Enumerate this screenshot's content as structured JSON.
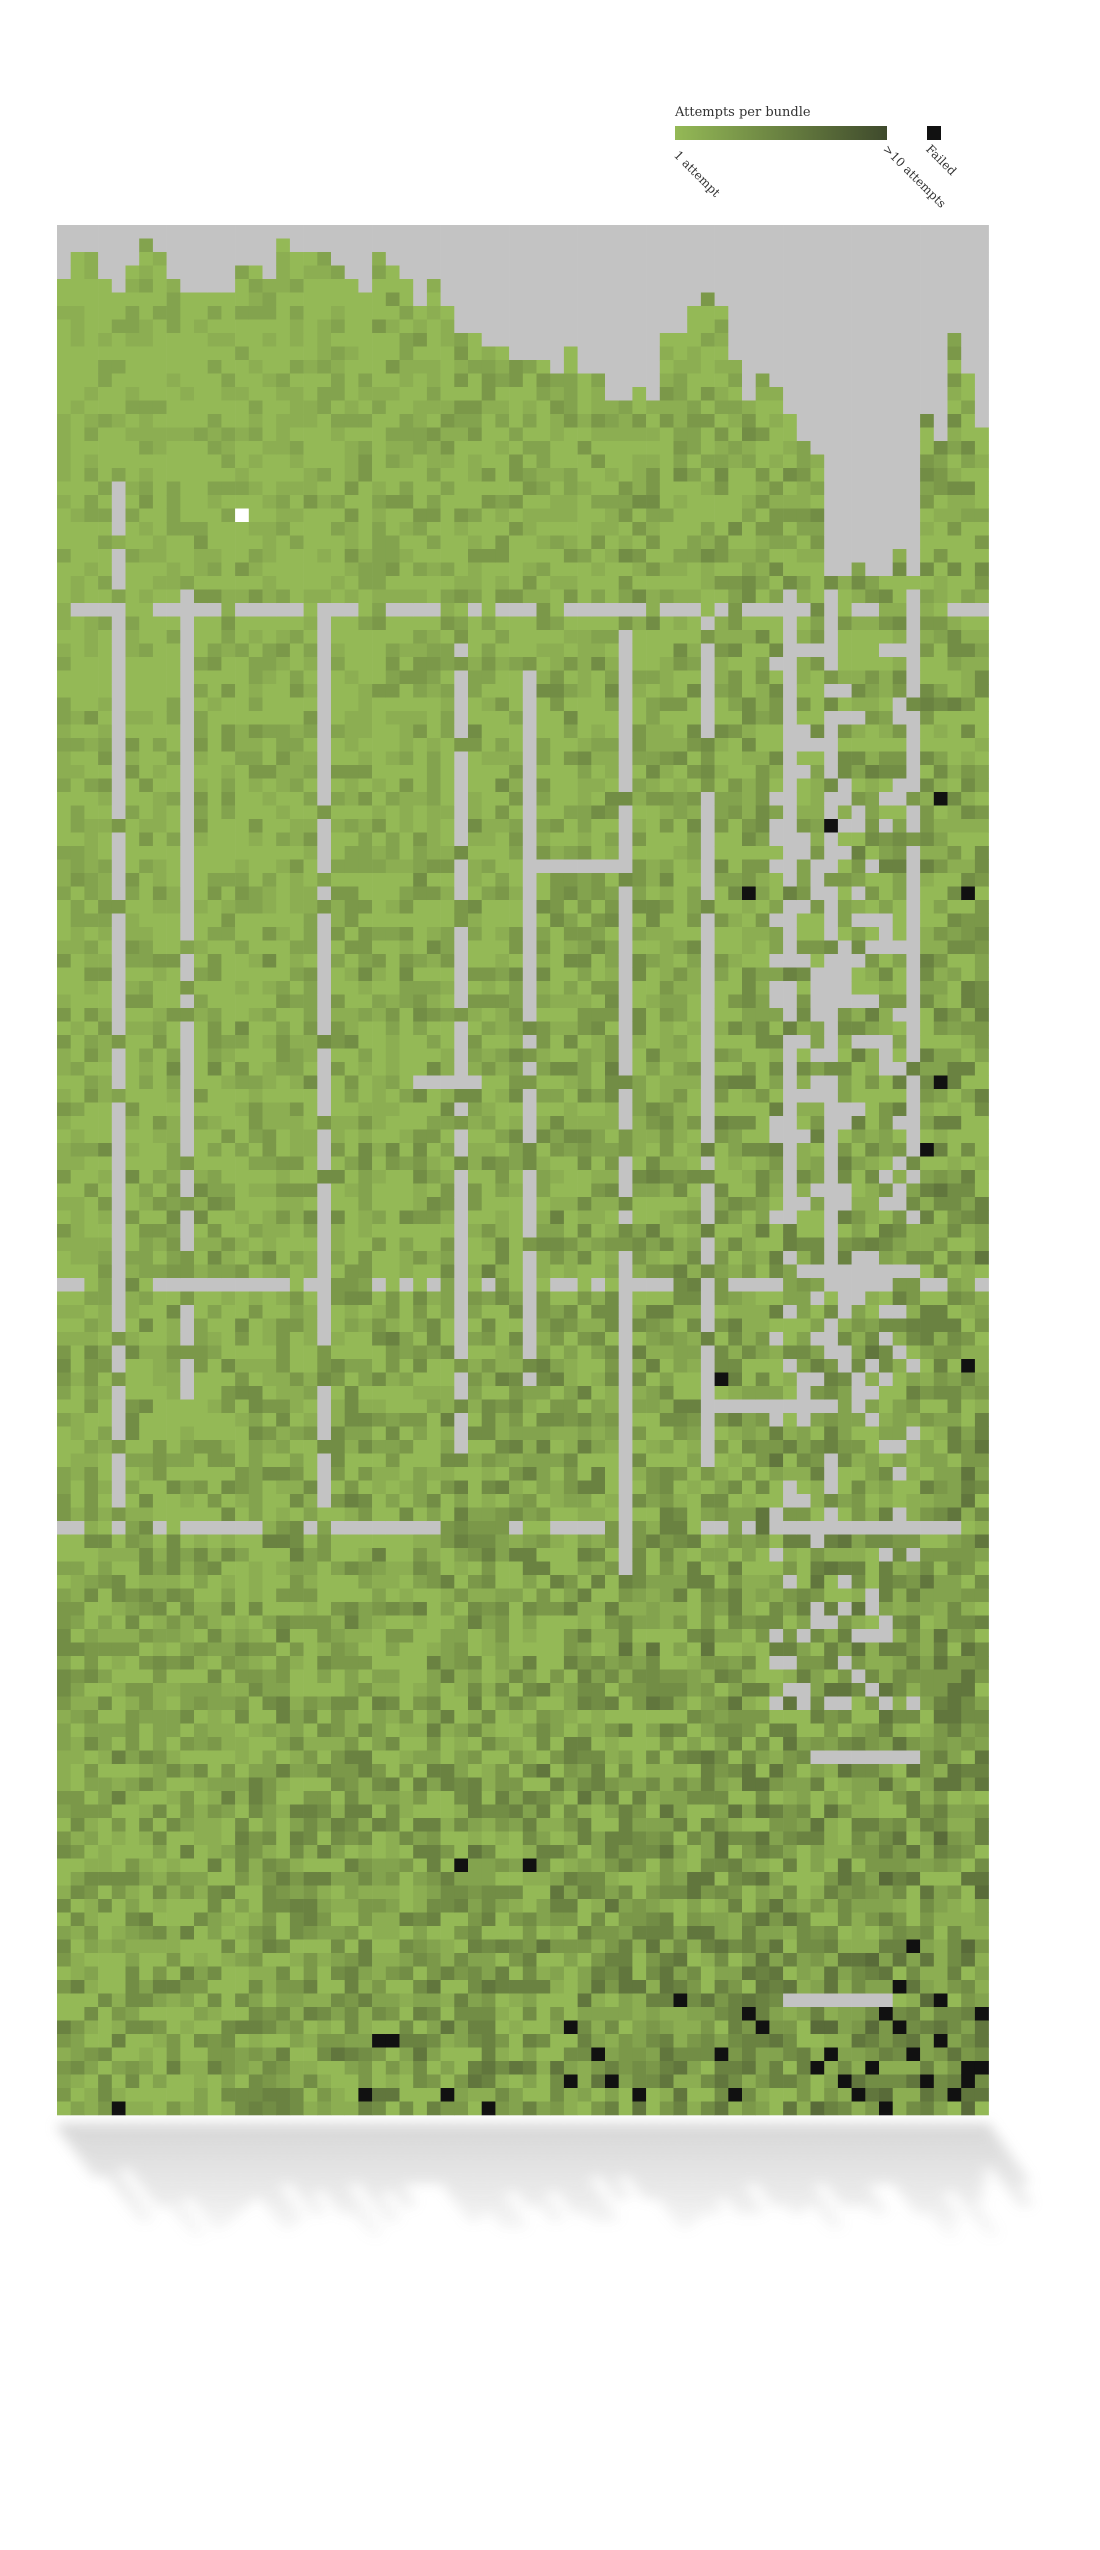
{
  "legend": {
    "title": "Attempts per bundle",
    "min_label": "1 attempt",
    "max_label": ">10 attempts",
    "failed_label": "Failed"
  },
  "colors": {
    "background": "#ffffff",
    "empty": "#c3c3c3",
    "one_attempt": "#94b956",
    "max_attempts": "#3f4a2c",
    "failed": "#111111"
  },
  "chart_data": {
    "type": "heatmap",
    "title": "",
    "columns": 68,
    "rows": 140,
    "value_meaning": "attempts per bundle; 0 = no data, 1..10 attempts, 11 = >10 attempts, -1 = failed",
    "legend_placement": "top-right",
    "column_fill_start_row": [
      4,
      2,
      2,
      4,
      5,
      3,
      1,
      2,
      4,
      5,
      5,
      5,
      5,
      3,
      3,
      4,
      1,
      2,
      2,
      2,
      3,
      4,
      5,
      2,
      3,
      4,
      6,
      4,
      6,
      8,
      8,
      9,
      9,
      10,
      10,
      10,
      11,
      9,
      11,
      11,
      13,
      13,
      12,
      13,
      8,
      8,
      6,
      5,
      6,
      10,
      13,
      11,
      12,
      14,
      16,
      17,
      26,
      26,
      25,
      26,
      26,
      24,
      26,
      14,
      16,
      8,
      11,
      15
    ],
    "empty_column_bands": [
      {
        "column": 4,
        "from_row": 18,
        "to_row": 96
      },
      {
        "column": 9,
        "from_row": 27,
        "to_row": 86
      },
      {
        "column": 19,
        "from_row": 29,
        "to_row": 94
      },
      {
        "column": 29,
        "from_row": 30,
        "to_row": 90
      },
      {
        "column": 34,
        "from_row": 32,
        "to_row": 85
      },
      {
        "column": 41,
        "from_row": 28,
        "to_row": 100
      },
      {
        "column": 47,
        "from_row": 29,
        "to_row": 91
      },
      {
        "column": 53,
        "from_row": 26,
        "to_row": 76
      },
      {
        "column": 56,
        "from_row": 26,
        "to_row": 78
      },
      {
        "column": 62,
        "from_row": 27,
        "to_row": 70
      }
    ],
    "empty_row_bands": [
      {
        "row": 28,
        "from_col": 1,
        "to_col": 3
      },
      {
        "row": 47,
        "from_col": 34,
        "to_col": 40
      },
      {
        "row": 63,
        "from_col": 26,
        "to_col": 30
      },
      {
        "row": 77,
        "from_col": 54,
        "to_col": 61
      },
      {
        "row": 87,
        "from_col": 48,
        "to_col": 55
      },
      {
        "row": 96,
        "from_col": 52,
        "to_col": 60
      },
      {
        "row": 113,
        "from_col": 55,
        "to_col": 62
      },
      {
        "row": 131,
        "from_col": 53,
        "to_col": 60
      }
    ],
    "light_cells": [
      [
        13,
        21
      ]
    ],
    "failed_cells": [
      [
        64,
        43
      ],
      [
        66,
        50
      ],
      [
        64,
        64
      ],
      [
        63,
        69
      ],
      [
        66,
        85
      ],
      [
        50,
        50
      ],
      [
        56,
        45
      ],
      [
        48,
        86
      ],
      [
        62,
        128
      ],
      [
        29,
        122
      ],
      [
        34,
        122
      ],
      [
        37,
        134
      ],
      [
        45,
        132
      ],
      [
        50,
        133
      ],
      [
        55,
        137
      ],
      [
        61,
        134
      ],
      [
        4,
        140
      ],
      [
        22,
        139
      ],
      [
        24,
        135
      ],
      [
        28,
        139
      ],
      [
        31,
        140
      ],
      [
        37,
        138
      ],
      [
        40,
        138
      ],
      [
        42,
        139
      ],
      [
        48,
        136
      ],
      [
        49,
        139
      ],
      [
        51,
        134
      ],
      [
        56,
        136
      ],
      [
        57,
        138
      ],
      [
        58,
        139
      ],
      [
        59,
        137
      ],
      [
        60,
        140
      ],
      [
        61,
        131
      ],
      [
        62,
        136
      ],
      [
        63,
        138
      ],
      [
        64,
        135
      ],
      [
        65,
        139
      ],
      [
        66,
        137
      ],
      [
        67,
        133
      ],
      [
        67,
        137
      ],
      [
        23,
        135
      ],
      [
        39,
        136
      ],
      [
        60,
        133
      ],
      [
        64,
        132
      ],
      [
        66,
        138
      ]
    ]
  }
}
